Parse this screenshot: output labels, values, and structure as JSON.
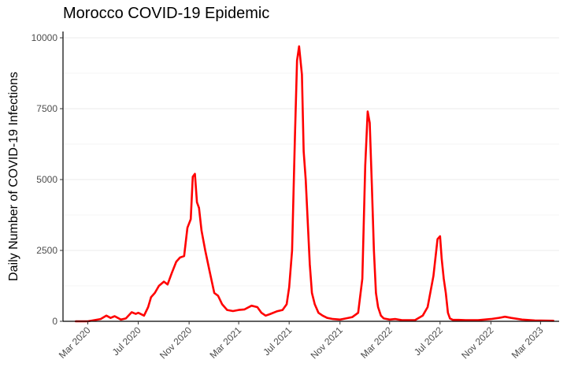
{
  "chart_data": {
    "type": "line",
    "title": "Morocco COVID-19 Epidemic",
    "xlabel": "",
    "ylabel": "Daily Number of COVID-19 Infections",
    "xlim": [
      "2020-01-01",
      "2023-04-15"
    ],
    "ylim": [
      0,
      10000
    ],
    "grid": true,
    "colors": {
      "line": "#ff0000",
      "grid": "#ebebeb",
      "axis": "#000000"
    },
    "x_ticks": [
      {
        "date": "2020-03-01",
        "label": "Mar 2020"
      },
      {
        "date": "2020-07-01",
        "label": "Jul 2020"
      },
      {
        "date": "2020-11-01",
        "label": "Nov 2020"
      },
      {
        "date": "2021-03-01",
        "label": "Mar 2021"
      },
      {
        "date": "2021-07-01",
        "label": "Jul 2021"
      },
      {
        "date": "2021-11-01",
        "label": "Nov 2021"
      },
      {
        "date": "2022-03-01",
        "label": "Mar 2022"
      },
      {
        "date": "2022-07-01",
        "label": "Jul 2022"
      },
      {
        "date": "2022-11-01",
        "label": "Nov 2022"
      },
      {
        "date": "2023-03-01",
        "label": "Mar 2023"
      }
    ],
    "y_ticks": [
      {
        "value": 0,
        "label": "0"
      },
      {
        "value": 2500,
        "label": "2500"
      },
      {
        "value": 5000,
        "label": "5000"
      },
      {
        "value": 7500,
        "label": "7500"
      },
      {
        "value": 10000,
        "label": "10000"
      }
    ],
    "series": [
      {
        "x": [
          "2020-02-01",
          "2020-03-01",
          "2020-04-01",
          "2020-04-15",
          "2020-04-25",
          "2020-05-05",
          "2020-05-20",
          "2020-06-01",
          "2020-06-15",
          "2020-06-25",
          "2020-07-01",
          "2020-07-15",
          "2020-07-25",
          "2020-08-01",
          "2020-08-10",
          "2020-08-20",
          "2020-09-01",
          "2020-09-10",
          "2020-09-20",
          "2020-10-01",
          "2020-10-10",
          "2020-10-20",
          "2020-10-28",
          "2020-11-05",
          "2020-11-10",
          "2020-11-15",
          "2020-11-20",
          "2020-11-25",
          "2020-12-01",
          "2020-12-10",
          "2020-12-20",
          "2021-01-01",
          "2021-01-10",
          "2021-01-20",
          "2021-02-01",
          "2021-02-15",
          "2021-03-01",
          "2021-03-15",
          "2021-04-01",
          "2021-04-15",
          "2021-04-25",
          "2021-05-05",
          "2021-05-15",
          "2021-06-01",
          "2021-06-15",
          "2021-06-25",
          "2021-07-01",
          "2021-07-08",
          "2021-07-15",
          "2021-07-20",
          "2021-07-25",
          "2021-08-01",
          "2021-08-05",
          "2021-08-10",
          "2021-08-15",
          "2021-08-20",
          "2021-08-25",
          "2021-09-01",
          "2021-09-10",
          "2021-09-20",
          "2021-10-01",
          "2021-10-15",
          "2021-11-01",
          "2021-11-15",
          "2021-12-01",
          "2021-12-15",
          "2021-12-25",
          "2022-01-01",
          "2022-01-07",
          "2022-01-12",
          "2022-01-17",
          "2022-01-22",
          "2022-01-27",
          "2022-02-01",
          "2022-02-08",
          "2022-02-15",
          "2022-03-01",
          "2022-03-15",
          "2022-04-01",
          "2022-05-01",
          "2022-05-20",
          "2022-06-01",
          "2022-06-15",
          "2022-06-25",
          "2022-07-01",
          "2022-07-05",
          "2022-07-10",
          "2022-07-15",
          "2022-07-20",
          "2022-07-25",
          "2022-08-01",
          "2022-08-15",
          "2022-09-01",
          "2022-10-01",
          "2022-11-01",
          "2022-11-20",
          "2022-12-05",
          "2022-12-20",
          "2023-01-15",
          "2023-02-15",
          "2023-04-01"
        ],
        "values": [
          0,
          0,
          80,
          200,
          120,
          180,
          60,
          100,
          320,
          260,
          300,
          200,
          500,
          850,
          1000,
          1250,
          1400,
          1300,
          1700,
          2100,
          2250,
          2300,
          3300,
          3600,
          5100,
          5200,
          4200,
          4000,
          3200,
          2500,
          1800,
          1000,
          900,
          600,
          400,
          360,
          400,
          420,
          550,
          500,
          300,
          200,
          250,
          350,
          400,
          600,
          1200,
          2500,
          6500,
          9200,
          9700,
          8700,
          6000,
          5000,
          3500,
          2000,
          1000,
          600,
          300,
          200,
          120,
          80,
          60,
          100,
          150,
          300,
          1500,
          5500,
          7400,
          7000,
          4800,
          2500,
          1000,
          500,
          200,
          100,
          60,
          80,
          40,
          40,
          200,
          500,
          1600,
          2900,
          3000,
          2200,
          1500,
          1000,
          300,
          100,
          50,
          50,
          40,
          40,
          80,
          120,
          160,
          120,
          60,
          30,
          20
        ]
      }
    ]
  }
}
